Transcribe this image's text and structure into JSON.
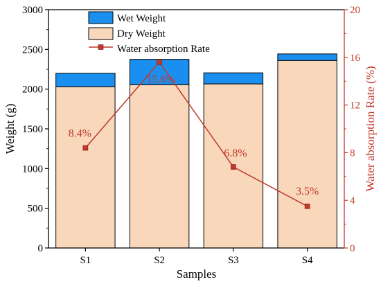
{
  "chart_data": {
    "type": "bar",
    "categories": [
      "S1",
      "S2",
      "S3",
      "S4"
    ],
    "series": [
      {
        "name": "Dry Weight",
        "axis": "left",
        "values": [
          2030,
          2055,
          2065,
          2360
        ]
      },
      {
        "name": "Wet Weight",
        "axis": "left",
        "values": [
          2200,
          2375,
          2205,
          2443
        ]
      },
      {
        "name": "Water absorption Rate",
        "axis": "right",
        "type": "line",
        "values": [
          8.4,
          15.6,
          6.8,
          3.5
        ],
        "labels": [
          "8.4%",
          "15.6%",
          "6.8%",
          "3.5%"
        ]
      }
    ],
    "xlabel": "Samples",
    "ylabel": "Weight (g)",
    "ylabel_right": "Water absorption Rate (%)",
    "ylim": [
      0,
      3000
    ],
    "ylim_right": [
      0,
      20
    ],
    "yticks": [
      0,
      500,
      1000,
      1500,
      2000,
      2500,
      3000
    ],
    "yticks_right": [
      0,
      4,
      8,
      12,
      16,
      20
    ],
    "grid": false,
    "legend_position": "top-left",
    "colors": {
      "wet": "#1a8ff0",
      "dry": "#f9d7bb",
      "rate": "#c0392b",
      "axis": "#000000"
    }
  }
}
